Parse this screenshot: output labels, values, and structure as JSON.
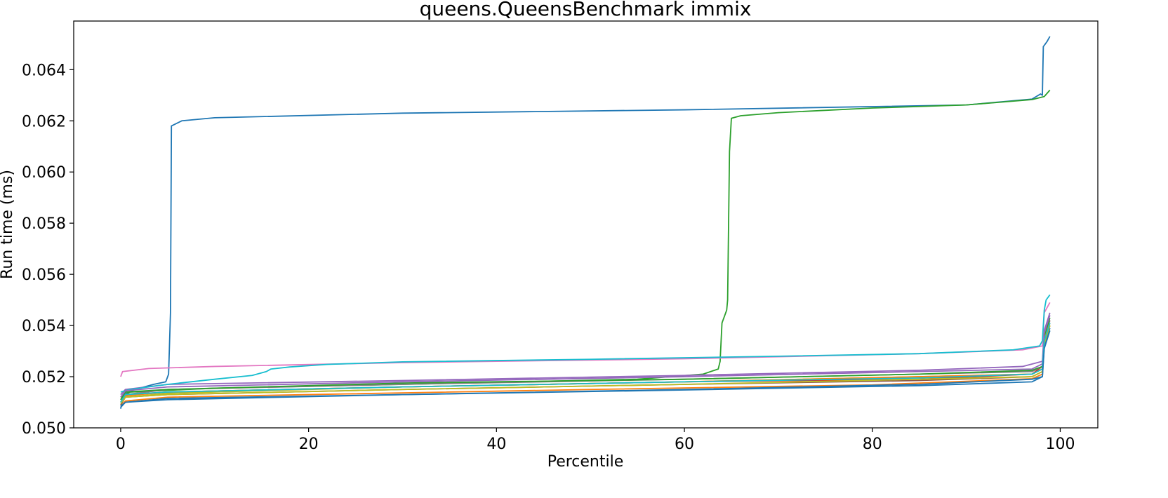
{
  "chart_data": {
    "type": "line",
    "title": "queens.QueensBenchmark immix",
    "xlabel": "Percentile",
    "ylabel": "Run time (ms)",
    "xlim": [
      -5,
      104
    ],
    "ylim": [
      0.05,
      0.0659
    ],
    "xticks": [
      0,
      20,
      40,
      60,
      80,
      100
    ],
    "yticks": [
      0.05,
      0.052,
      0.054,
      0.056,
      0.058,
      0.06,
      0.062,
      0.064
    ],
    "ytick_labels": [
      "0.050",
      "0.052",
      "0.054",
      "0.056",
      "0.058",
      "0.060",
      "0.062",
      "0.064"
    ],
    "xtick_labels": [
      "0",
      "20",
      "40",
      "60",
      "80",
      "100"
    ],
    "grid": false,
    "legend": false,
    "series": [
      {
        "color": "#1f77b4",
        "points": [
          [
            0,
            0.05075
          ],
          [
            0.3,
            0.0513
          ],
          [
            1.5,
            0.0515
          ],
          [
            3.5,
            0.0517
          ],
          [
            4.8,
            0.0518
          ],
          [
            5.1,
            0.0521
          ],
          [
            5.3,
            0.0545
          ],
          [
            5.4,
            0.0618
          ],
          [
            6.5,
            0.062
          ],
          [
            10,
            0.06212
          ],
          [
            30,
            0.0623
          ],
          [
            60,
            0.06243
          ],
          [
            90,
            0.06262
          ],
          [
            97,
            0.06285
          ],
          [
            97.9,
            0.06305
          ],
          [
            98.1,
            0.063
          ],
          [
            98.2,
            0.0649
          ],
          [
            98.6,
            0.0651
          ],
          [
            98.9,
            0.0653
          ]
        ]
      },
      {
        "color": "#ff7f0e",
        "points": [
          [
            0,
            0.05085
          ],
          [
            0.5,
            0.05105
          ],
          [
            5,
            0.0512
          ],
          [
            20,
            0.0513
          ],
          [
            50,
            0.0515
          ],
          [
            80,
            0.05168
          ],
          [
            97,
            0.05192
          ],
          [
            98.1,
            0.0521
          ],
          [
            98.3,
            0.0533
          ],
          [
            98.9,
            0.054
          ]
        ]
      },
      {
        "color": "#2ca02c",
        "points": [
          [
            0,
            0.0512
          ],
          [
            1,
            0.0514
          ],
          [
            10,
            0.05155
          ],
          [
            30,
            0.0517
          ],
          [
            55,
            0.0519
          ],
          [
            62,
            0.0521
          ],
          [
            63.6,
            0.0523
          ],
          [
            63.8,
            0.0526
          ],
          [
            64,
            0.0541
          ],
          [
            64.2,
            0.0543
          ],
          [
            64.5,
            0.0546
          ],
          [
            64.6,
            0.055
          ],
          [
            64.8,
            0.0608
          ],
          [
            65,
            0.0621
          ],
          [
            66,
            0.0622
          ],
          [
            70,
            0.06232
          ],
          [
            80,
            0.0625
          ],
          [
            90,
            0.06262
          ],
          [
            97,
            0.06283
          ],
          [
            98.3,
            0.06295
          ],
          [
            98.9,
            0.0632
          ]
        ]
      },
      {
        "color": "#d62728",
        "points": [
          [
            0,
            0.0511
          ],
          [
            0.5,
            0.0513
          ],
          [
            5,
            0.0514
          ],
          [
            30,
            0.0516
          ],
          [
            60,
            0.0518
          ],
          [
            85,
            0.0519
          ],
          [
            97,
            0.0521
          ],
          [
            98.1,
            0.0524
          ],
          [
            98.3,
            0.0536
          ],
          [
            98.9,
            0.0542
          ]
        ]
      },
      {
        "color": "#9467bd",
        "points": [
          [
            0,
            0.0513
          ],
          [
            0.5,
            0.0515
          ],
          [
            5,
            0.0517
          ],
          [
            30,
            0.05185
          ],
          [
            60,
            0.05205
          ],
          [
            85,
            0.05225
          ],
          [
            96,
            0.0524
          ],
          [
            98.1,
            0.0526
          ],
          [
            98.3,
            0.0538
          ],
          [
            98.9,
            0.0545
          ]
        ]
      },
      {
        "color": "#8c564b",
        "points": [
          [
            0,
            0.0509
          ],
          [
            0.5,
            0.0512
          ],
          [
            5,
            0.0513
          ],
          [
            30,
            0.0515
          ],
          [
            60,
            0.0517
          ],
          [
            85,
            0.05185
          ],
          [
            97,
            0.052
          ],
          [
            98.1,
            0.0522
          ],
          [
            98.3,
            0.0534
          ],
          [
            98.9,
            0.0541
          ]
        ]
      },
      {
        "color": "#e377c2",
        "points": [
          [
            0,
            0.052
          ],
          [
            0.2,
            0.0522
          ],
          [
            3,
            0.05232
          ],
          [
            10,
            0.0524
          ],
          [
            30,
            0.05255
          ],
          [
            60,
            0.0527
          ],
          [
            85,
            0.0529
          ],
          [
            96,
            0.05305
          ],
          [
            98.1,
            0.0532
          ],
          [
            98.3,
            0.0545
          ],
          [
            98.9,
            0.0549
          ]
        ]
      },
      {
        "color": "#7f7f7f",
        "points": [
          [
            0,
            0.0511
          ],
          [
            0.5,
            0.0513
          ],
          [
            5,
            0.0515
          ],
          [
            30,
            0.0517
          ],
          [
            60,
            0.0519
          ],
          [
            85,
            0.0521
          ],
          [
            97,
            0.0522
          ],
          [
            98.1,
            0.0524
          ],
          [
            98.3,
            0.0535
          ],
          [
            98.9,
            0.0542
          ]
        ]
      },
      {
        "color": "#bcbd22",
        "points": [
          [
            0,
            0.051
          ],
          [
            0.5,
            0.0512
          ],
          [
            5,
            0.05135
          ],
          [
            30,
            0.0516
          ],
          [
            60,
            0.0518
          ],
          [
            85,
            0.052
          ],
          [
            97,
            0.0521
          ],
          [
            98.1,
            0.0523
          ],
          [
            98.3,
            0.0534
          ],
          [
            98.9,
            0.054
          ]
        ]
      },
      {
        "color": "#17becf",
        "points": [
          [
            0,
            0.0514
          ],
          [
            1,
            0.0515
          ],
          [
            5,
            0.0517
          ],
          [
            10,
            0.0519
          ],
          [
            14,
            0.05205
          ],
          [
            15.5,
            0.0522
          ],
          [
            16,
            0.0523
          ],
          [
            18,
            0.05238
          ],
          [
            22,
            0.05248
          ],
          [
            30,
            0.05258
          ],
          [
            50,
            0.05268
          ],
          [
            70,
            0.0528
          ],
          [
            85,
            0.0529
          ],
          [
            95,
            0.05305
          ],
          [
            97.8,
            0.0532
          ],
          [
            98.1,
            0.0534
          ],
          [
            98.3,
            0.0546
          ],
          [
            98.5,
            0.055
          ],
          [
            98.9,
            0.0552
          ]
        ]
      },
      {
        "color": "#1f77b4",
        "points": [
          [
            0,
            0.0508
          ],
          [
            0.5,
            0.051
          ],
          [
            5,
            0.0511
          ],
          [
            30,
            0.0513
          ],
          [
            60,
            0.0515
          ],
          [
            85,
            0.0517
          ],
          [
            97,
            0.0519
          ],
          [
            98.1,
            0.052
          ],
          [
            98.3,
            0.0532
          ],
          [
            98.9,
            0.0539
          ]
        ]
      },
      {
        "color": "#ff7f0e",
        "points": [
          [
            0,
            0.051
          ],
          [
            0.5,
            0.05125
          ],
          [
            5,
            0.0514
          ],
          [
            30,
            0.0516
          ],
          [
            60,
            0.0518
          ],
          [
            85,
            0.052
          ],
          [
            97,
            0.0521
          ],
          [
            98.1,
            0.0523
          ],
          [
            98.3,
            0.0535
          ],
          [
            98.9,
            0.0541
          ]
        ]
      },
      {
        "color": "#2ca02c",
        "points": [
          [
            0,
            0.0511
          ],
          [
            0.5,
            0.0514
          ],
          [
            5,
            0.0515
          ],
          [
            30,
            0.05175
          ],
          [
            60,
            0.0519
          ],
          [
            85,
            0.0521
          ],
          [
            97,
            0.05225
          ],
          [
            98.1,
            0.0524
          ],
          [
            98.3,
            0.0536
          ],
          [
            98.9,
            0.0543
          ]
        ]
      },
      {
        "color": "#9467bd",
        "points": [
          [
            0,
            0.0512
          ],
          [
            0.5,
            0.05145
          ],
          [
            5,
            0.0516
          ],
          [
            30,
            0.0518
          ],
          [
            60,
            0.052
          ],
          [
            85,
            0.0522
          ],
          [
            97,
            0.0523
          ],
          [
            98.1,
            0.0525
          ],
          [
            98.3,
            0.0537
          ],
          [
            98.9,
            0.0544
          ]
        ]
      },
      {
        "color": "#bcbd22",
        "points": [
          [
            0,
            0.05095
          ],
          [
            0.5,
            0.0512
          ],
          [
            5,
            0.0513
          ],
          [
            30,
            0.0515
          ],
          [
            60,
            0.0517
          ],
          [
            85,
            0.0519
          ],
          [
            97,
            0.052
          ],
          [
            98.1,
            0.0522
          ],
          [
            98.3,
            0.0533
          ],
          [
            98.9,
            0.054
          ]
        ]
      },
      {
        "color": "#17becf",
        "points": [
          [
            0,
            0.051
          ],
          [
            0.5,
            0.0513
          ],
          [
            5,
            0.0514
          ],
          [
            30,
            0.0516
          ],
          [
            60,
            0.0518
          ],
          [
            85,
            0.05195
          ],
          [
            97,
            0.0521
          ],
          [
            98.1,
            0.0523
          ],
          [
            98.3,
            0.0534
          ],
          [
            98.9,
            0.0541
          ]
        ]
      },
      {
        "color": "#1f77b4",
        "points": [
          [
            0,
            0.05085
          ],
          [
            0.5,
            0.051
          ],
          [
            5,
            0.05115
          ],
          [
            30,
            0.0513
          ],
          [
            60,
            0.05148
          ],
          [
            85,
            0.05165
          ],
          [
            97,
            0.0518
          ],
          [
            98.1,
            0.052
          ],
          [
            98.3,
            0.0531
          ],
          [
            98.9,
            0.0538
          ]
        ]
      }
    ]
  }
}
